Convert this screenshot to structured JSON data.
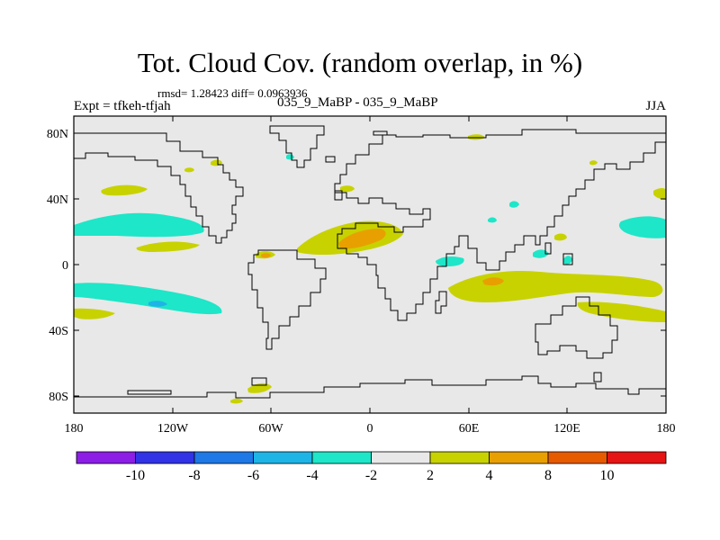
{
  "header": {
    "title": "Tot. Cloud Cov. (random overlap, in %)",
    "stats": "rmsd= 1.28423 diff= 0.0963936",
    "experiment": "Expt = tfkeh-tfjah",
    "case_name": "035_9_MaBP - 035_9_MaBP",
    "season": "JJA"
  },
  "axes": {
    "x_ticks": [
      "180",
      "120W",
      "60W",
      "0",
      "60E",
      "120E",
      "180"
    ],
    "y_ticks": [
      "80N",
      "40N",
      "0",
      "40S",
      "80S"
    ]
  },
  "colorbar": {
    "colors": [
      "#8c1ee6",
      "#3232e6",
      "#1e78e6",
      "#1eb4e6",
      "#1ee6c8",
      "#e8e8e8",
      "#c8d200",
      "#e8a000",
      "#e65a00",
      "#e61414"
    ],
    "labels": [
      "-10",
      "-8",
      "-6",
      "-4",
      "-2",
      "2",
      "4",
      "8",
      "10"
    ]
  },
  "colors": {
    "land_background": "#e8e8e8",
    "neg_contour": "#1ee6c8",
    "neg_contour_dark": "#1eb4e6",
    "pos_contour": "#c8d200",
    "pos_contour_strong": "#e8a000"
  }
}
